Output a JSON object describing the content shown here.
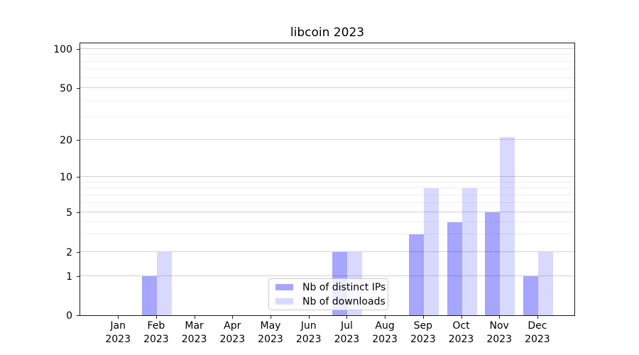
{
  "chart_data": {
    "type": "bar",
    "title": "libcoin 2023",
    "xlabel": "",
    "ylabel": "",
    "categories": [
      "Jan 2023",
      "Feb 2023",
      "Mar 2023",
      "Apr 2023",
      "May 2023",
      "Jun 2023",
      "Jul 2023",
      "Aug 2023",
      "Sep 2023",
      "Oct 2023",
      "Nov 2023",
      "Dec 2023"
    ],
    "x_tick_labels": [
      {
        "month": "Jan",
        "year": "2023"
      },
      {
        "month": "Feb",
        "year": "2023"
      },
      {
        "month": "Mar",
        "year": "2023"
      },
      {
        "month": "Apr",
        "year": "2023"
      },
      {
        "month": "May",
        "year": "2023"
      },
      {
        "month": "Jun",
        "year": "2023"
      },
      {
        "month": "Jul",
        "year": "2023"
      },
      {
        "month": "Aug",
        "year": "2023"
      },
      {
        "month": "Sep",
        "year": "2023"
      },
      {
        "month": "Oct",
        "year": "2023"
      },
      {
        "month": "Nov",
        "year": "2023"
      },
      {
        "month": "Dec",
        "year": "2023"
      }
    ],
    "series": [
      {
        "name": "Nb of distinct IPs",
        "color": "rgba(0,0,255,0.35)",
        "values": [
          0,
          1,
          0,
          0,
          0,
          0,
          2,
          0,
          3,
          4,
          5,
          1
        ]
      },
      {
        "name": "Nb of downloads",
        "color": "rgba(0,0,255,0.15)",
        "values": [
          0,
          2,
          0,
          0,
          0,
          0,
          2,
          0,
          8,
          8,
          21,
          2
        ]
      }
    ],
    "y_scale": "symlog",
    "y_ticks": [
      0,
      1,
      2,
      5,
      10,
      20,
      50,
      100
    ],
    "y_minor_ticks": [
      3,
      4,
      6,
      7,
      8,
      9,
      30,
      40,
      60,
      70,
      80,
      90
    ],
    "ylim": [
      0,
      140
    ],
    "grid": "horizontal",
    "legend_position": "lower center inside"
  },
  "legend": {
    "items": [
      {
        "label": "Nb of distinct IPs",
        "color": "rgba(0,0,255,0.35)"
      },
      {
        "label": "Nb of downloads",
        "color": "rgba(0,0,255,0.15)"
      }
    ]
  },
  "colors": {
    "bar_distinct_ips": "rgba(0,0,255,0.35)",
    "bar_downloads": "rgba(0,0,255,0.15)",
    "grid_major": "#d2d2d2",
    "grid_minor": "#efefef",
    "axis": "#1a1a1a",
    "background": "#ffffff"
  }
}
